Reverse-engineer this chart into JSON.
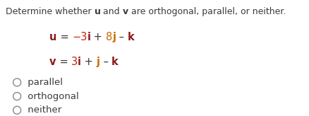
{
  "bg_color": "#ffffff",
  "title": "Determine whether ",
  "title_bold1": "u",
  "title_mid": " and ",
  "title_bold2": "v",
  "title_end": " are orthogonal, parallel, or neither.",
  "title_color": "#3a3a3a",
  "title_fontsize": 9.0,
  "eq_fontsize": 10.5,
  "eq_u": [
    {
      "text": "u",
      "weight": "bold",
      "color": "#8B1A1A",
      "italic": false
    },
    {
      "text": " = ",
      "weight": "normal",
      "color": "#3a3a3a",
      "italic": false
    },
    {
      "text": "−3",
      "weight": "normal",
      "color": "#CC2200",
      "italic": false
    },
    {
      "text": "i",
      "weight": "bold",
      "color": "#8B1A1A",
      "italic": false
    },
    {
      "text": " + ",
      "weight": "normal",
      "color": "#3a3a3a",
      "italic": false
    },
    {
      "text": "8",
      "weight": "normal",
      "color": "#CC6600",
      "italic": false
    },
    {
      "text": "j",
      "weight": "bold",
      "color": "#CC6600",
      "italic": false
    },
    {
      "text": " – ",
      "weight": "normal",
      "color": "#3a3a3a",
      "italic": false
    },
    {
      "text": "k",
      "weight": "bold",
      "color": "#8B1A1A",
      "italic": false
    }
  ],
  "eq_v": [
    {
      "text": "v",
      "weight": "bold",
      "color": "#8B1A1A",
      "italic": false
    },
    {
      "text": " = ",
      "weight": "normal",
      "color": "#3a3a3a",
      "italic": false
    },
    {
      "text": "3",
      "weight": "normal",
      "color": "#CC2200",
      "italic": false
    },
    {
      "text": "i",
      "weight": "bold",
      "color": "#8B1A1A",
      "italic": false
    },
    {
      "text": " + ",
      "weight": "normal",
      "color": "#3a3a3a",
      "italic": false
    },
    {
      "text": "j",
      "weight": "bold",
      "color": "#CC6600",
      "italic": false
    },
    {
      "text": " – ",
      "weight": "normal",
      "color": "#3a3a3a",
      "italic": false
    },
    {
      "text": "k",
      "weight": "bold",
      "color": "#8B1A1A",
      "italic": false
    }
  ],
  "options": [
    "parallel",
    "orthogonal",
    "neither"
  ],
  "option_color": "#3a3a3a",
  "option_fontsize": 9.5,
  "circle_color": "#888888",
  "circle_linewidth": 1.0
}
